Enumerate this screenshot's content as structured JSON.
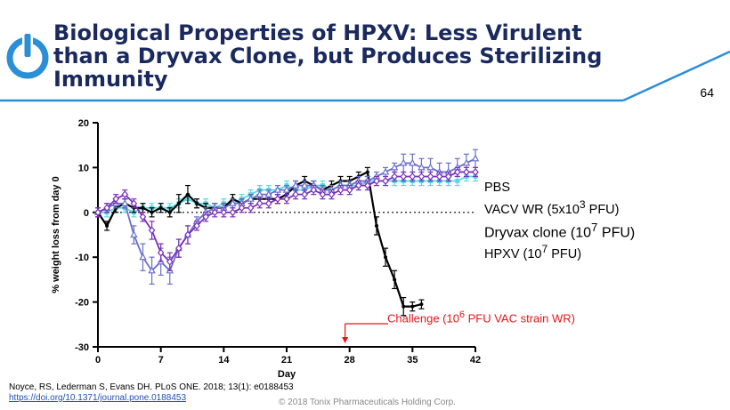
{
  "slide": {
    "title": "Biological Properties of HPXV: Less Virulent\nthan a Dryvax Clone, but Produces Sterilizing\nImmunity",
    "page_number": "64",
    "citation_text": "Noyce, RS, Lederman S, Evans DH. PLoS ONE. 2018; 13(1): e0188453",
    "citation_link": "https://doi.org/10.1371/journal.pone.0188453",
    "copyright": "© 2018 Tonix Pharmaceuticals Holding Corp.",
    "logo_icon": "power-symbol-logo-icon",
    "colors": {
      "title": "#1a2a5e",
      "accent": "#2b8fd6",
      "challenge": "#e3161b"
    }
  },
  "legend": [
    {
      "label": "PBS"
    },
    {
      "label_pre": "VACV WR (5x10",
      "sup": "3",
      "label_post": " PFU)"
    },
    {
      "label_pre": "Dryvax clone (10",
      "sup": "7",
      "label_post": " PFU)"
    },
    {
      "label_pre": "HPXV (10",
      "sup": "7",
      "label_post": " PFU)"
    }
  ],
  "annotation": {
    "pre": "Challenge (10",
    "sup": "6",
    "post": " PFU VAC strain WR)",
    "day": 27.5
  },
  "chart_data": {
    "type": "line",
    "xlabel": "Day",
    "ylabel": "% weight loss from day 0",
    "xlim": [
      0,
      42
    ],
    "ylim": [
      -30,
      20
    ],
    "xticks": [
      0,
      7,
      14,
      21,
      28,
      35,
      42
    ],
    "yticks": [
      20,
      10,
      0,
      -10,
      -20,
      -30
    ],
    "reference_line": 0,
    "series": [
      {
        "name": "PBS",
        "color": "#5ad7e6",
        "marker": "square",
        "x": [
          0,
          1,
          2,
          3,
          4,
          5,
          6,
          7,
          8,
          9,
          10,
          11,
          12,
          13,
          14,
          15,
          16,
          17,
          18,
          19,
          20,
          21,
          22,
          23,
          24,
          25,
          26,
          27,
          28,
          29,
          30,
          31,
          32,
          33,
          34,
          35,
          36,
          37,
          38,
          39,
          40,
          41,
          42
        ],
        "y": [
          0,
          0,
          1,
          1,
          0,
          1,
          1,
          1,
          1,
          2,
          3,
          2,
          2,
          1,
          2,
          2,
          3,
          4,
          5,
          5,
          5,
          6,
          5,
          5,
          6,
          6,
          5,
          6,
          6,
          6,
          7,
          7,
          7,
          7,
          7,
          7,
          7,
          7,
          7,
          7,
          7,
          8,
          8
        ],
        "err": [
          1,
          1,
          1,
          1,
          1,
          1,
          1,
          1,
          1,
          1,
          1,
          1,
          1,
          1,
          1,
          1,
          1,
          1,
          1,
          1,
          1,
          1,
          1,
          1,
          1,
          1,
          1,
          1,
          1,
          1,
          1,
          1,
          1,
          1,
          1,
          1,
          1,
          1,
          1,
          1,
          1,
          1,
          1
        ]
      },
      {
        "name": "VACV WR (5x10³ PFU)",
        "color": "#000000",
        "marker": "filled-circle",
        "x": [
          0,
          1,
          2,
          3,
          4,
          5,
          6,
          7,
          8,
          9,
          10,
          11,
          12,
          13,
          14,
          15,
          16,
          17,
          18,
          19,
          20,
          21,
          22,
          23,
          24,
          25,
          26,
          27,
          28,
          29,
          30,
          31,
          32,
          33,
          34,
          35,
          36
        ],
        "y": [
          0,
          -3,
          1,
          2,
          1,
          1,
          0,
          1,
          0,
          2,
          4,
          2,
          1,
          1,
          1,
          3,
          2,
          3,
          3,
          3,
          3,
          4,
          6,
          7,
          6,
          5,
          6,
          7,
          7,
          8,
          9,
          -3,
          -10,
          -15,
          -21,
          -21,
          -20.5
        ],
        "err": [
          1,
          1,
          1,
          1,
          1,
          1,
          1,
          1,
          1,
          2,
          2,
          1,
          1,
          1,
          1,
          1,
          1,
          1,
          1,
          1,
          1,
          1,
          1,
          1,
          1,
          1,
          1,
          1,
          1,
          1,
          1,
          2,
          2,
          2,
          2,
          1,
          1
        ]
      },
      {
        "name": "Dryvax clone (10⁷ PFU)",
        "color": "#6a6fc9",
        "marker": "open-triangle",
        "x": [
          0,
          1,
          2,
          3,
          4,
          5,
          6,
          7,
          8,
          9,
          10,
          11,
          12,
          13,
          14,
          15,
          16,
          17,
          18,
          19,
          20,
          21,
          22,
          23,
          24,
          25,
          26,
          27,
          28,
          29,
          30,
          31,
          32,
          33,
          34,
          35,
          36,
          37,
          38,
          39,
          40,
          41,
          42
        ],
        "y": [
          0,
          1,
          2,
          2,
          -5,
          -10,
          -13,
          -11,
          -13,
          -8,
          -5,
          -2,
          0,
          1,
          1,
          2,
          2,
          3,
          4,
          4,
          5,
          5,
          6,
          6,
          6,
          5,
          5,
          6,
          6,
          7,
          7,
          8,
          9,
          10,
          11,
          11,
          10,
          10,
          9,
          9,
          10,
          11,
          12
        ],
        "err": [
          1,
          1,
          1,
          1,
          2,
          3,
          3,
          3,
          3,
          2,
          2,
          1,
          1,
          1,
          1,
          1,
          1,
          1,
          1,
          1,
          1,
          1,
          1,
          1,
          1,
          1,
          1,
          1,
          1,
          1,
          1,
          1,
          1,
          1,
          2,
          2,
          2,
          2,
          2,
          2,
          2,
          2,
          2
        ]
      },
      {
        "name": "HPXV (10⁷ PFU)",
        "color": "#7a2fb8",
        "marker": "open-diamond",
        "x": [
          0,
          1,
          2,
          3,
          4,
          5,
          6,
          7,
          8,
          9,
          10,
          11,
          12,
          13,
          14,
          15,
          16,
          17,
          18,
          19,
          20,
          21,
          22,
          23,
          24,
          25,
          26,
          27,
          28,
          29,
          30,
          31,
          32,
          33,
          34,
          35,
          36,
          37,
          38,
          39,
          40,
          41,
          42
        ],
        "y": [
          0,
          1,
          3,
          4,
          2,
          -1,
          -4,
          -9,
          -11,
          -8,
          -5,
          -3,
          -1,
          0,
          0,
          0,
          1,
          1,
          2,
          2,
          3,
          3,
          4,
          4,
          5,
          4,
          4,
          5,
          5,
          6,
          6,
          7,
          7,
          8,
          8,
          8,
          8,
          8,
          8,
          8,
          9,
          9,
          9
        ],
        "err": [
          1,
          1,
          1,
          1,
          1,
          1,
          2,
          2,
          2,
          2,
          2,
          1,
          1,
          1,
          1,
          1,
          1,
          1,
          1,
          1,
          1,
          1,
          1,
          1,
          1,
          1,
          1,
          1,
          1,
          1,
          1,
          1,
          1,
          1,
          1,
          1,
          1,
          1,
          1,
          1,
          1,
          1,
          1
        ]
      }
    ]
  }
}
